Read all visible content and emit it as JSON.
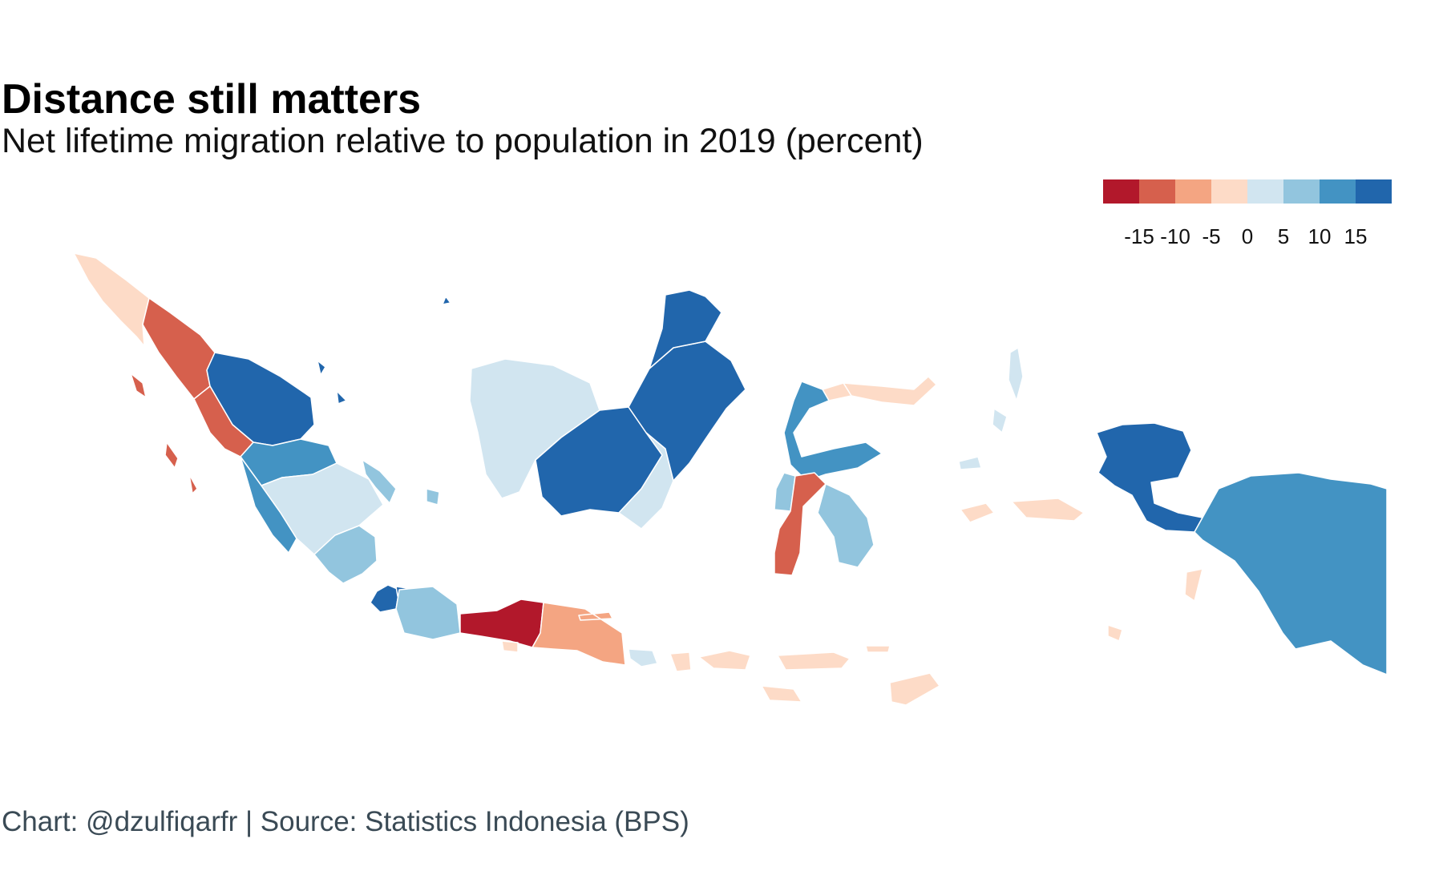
{
  "title": "Distance still matters",
  "subtitle": "Net lifetime migration relative to population in 2019 (percent)",
  "caption": "Chart: @dzulfiqarfr | Source: Statistics Indonesia (BPS)",
  "legend": {
    "colors": [
      "#b2182b",
      "#d6604d",
      "#f4a582",
      "#fddbc7",
      "#d1e5f0",
      "#92c5de",
      "#4393c3",
      "#2166ac"
    ],
    "labels": [
      "-15",
      "-10",
      "-5",
      "0",
      "5",
      "10",
      "15"
    ]
  },
  "chart_data": {
    "type": "choropleth",
    "value_label": "Net lifetime migration relative to population in 2019 (percent)",
    "legend_breaks": [
      -15,
      -10,
      -5,
      0,
      5,
      10,
      15
    ],
    "regions": [
      {
        "name": "Aceh",
        "value": -2
      },
      {
        "name": "Sumatera Utara",
        "value": -12
      },
      {
        "name": "Sumatera Barat",
        "value": -12
      },
      {
        "name": "Riau",
        "value": 17
      },
      {
        "name": "Jambi",
        "value": 12
      },
      {
        "name": "Sumatera Selatan",
        "value": 3
      },
      {
        "name": "Bengkulu",
        "value": 12
      },
      {
        "name": "Lampung",
        "value": 7
      },
      {
        "name": "Kepulauan Bangka Belitung",
        "value": 7
      },
      {
        "name": "Kepulauan Riau",
        "value": 17
      },
      {
        "name": "DKI Jakarta",
        "value": 17
      },
      {
        "name": "Jawa Barat",
        "value": 7
      },
      {
        "name": "Jawa Tengah",
        "value": -17
      },
      {
        "name": "DI Yogyakarta",
        "value": -2
      },
      {
        "name": "Jawa Timur",
        "value": -7
      },
      {
        "name": "Banten",
        "value": 17
      },
      {
        "name": "Bali",
        "value": 3
      },
      {
        "name": "Nusa Tenggara Barat",
        "value": -2
      },
      {
        "name": "Nusa Tenggara Timur",
        "value": -2
      },
      {
        "name": "Kalimantan Barat",
        "value": 3
      },
      {
        "name": "Kalimantan Tengah",
        "value": 17
      },
      {
        "name": "Kalimantan Selatan",
        "value": 3
      },
      {
        "name": "Kalimantan Timur",
        "value": 17
      },
      {
        "name": "Kalimantan Utara",
        "value": 17
      },
      {
        "name": "Sulawesi Utara",
        "value": -2
      },
      {
        "name": "Sulawesi Tengah",
        "value": 12
      },
      {
        "name": "Sulawesi Selatan",
        "value": -12
      },
      {
        "name": "Sulawesi Tenggara",
        "value": 7
      },
      {
        "name": "Gorontalo",
        "value": -2
      },
      {
        "name": "Sulawesi Barat",
        "value": 7
      },
      {
        "name": "Maluku",
        "value": -2
      },
      {
        "name": "Maluku Utara",
        "value": 3
      },
      {
        "name": "Papua Barat",
        "value": 17
      },
      {
        "name": "Papua",
        "value": 12
      }
    ]
  }
}
